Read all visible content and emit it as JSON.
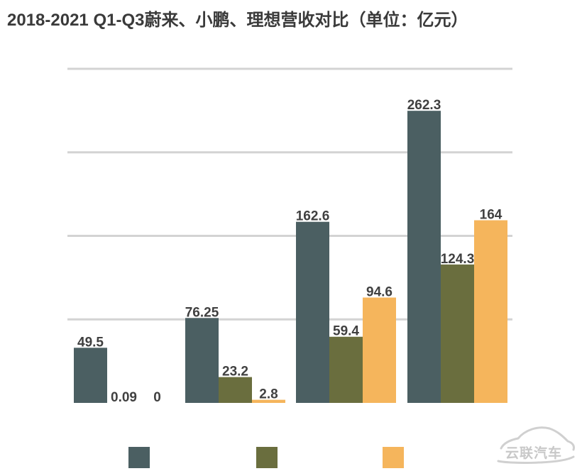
{
  "title": "2018-2021 Q1-Q3蔚来、小鹏、理想营收对比（单位：亿元）",
  "watermark": "云联汽车",
  "colors": {
    "series1": "#4b5f62",
    "series2": "#6a6e3e",
    "series3": "#f5b55c",
    "grid": "#d3d3d3",
    "label": "#404040"
  },
  "chart_data": {
    "type": "bar",
    "categories": [
      "",
      "",
      "",
      ""
    ],
    "series": [
      {
        "values": [
          49.5,
          76.25,
          162.6,
          262.3
        ],
        "labels": [
          "49.5",
          "76.25",
          "162.6",
          "262.3"
        ]
      },
      {
        "values": [
          0.09,
          23.2,
          59.4,
          124.3
        ],
        "labels": [
          "0.09",
          "23.2",
          "59.4",
          "124.3"
        ]
      },
      {
        "values": [
          0,
          2.8,
          94.6,
          164
        ],
        "labels": [
          "0",
          "2.8",
          "94.6",
          "164"
        ]
      }
    ],
    "ylim": [
      0,
      300
    ],
    "gridlines": [
      75,
      150,
      225,
      300
    ],
    "grid": true,
    "legend": "bottom",
    "title": "2018-2021 Q1-Q3蔚来、小鹏、理想营收对比（单位：亿元）",
    "xlabel": "",
    "ylabel": ""
  }
}
